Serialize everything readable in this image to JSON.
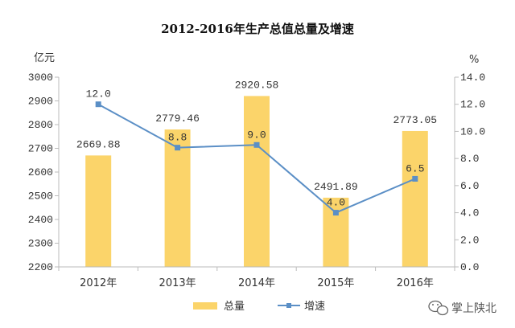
{
  "chart_data": {
    "type": "bar",
    "title": "2012-2016年生产总值总量及增速",
    "categories": [
      "2012年",
      "2013年",
      "2014年",
      "2015年",
      "2016年"
    ],
    "ylabel_left": "亿元",
    "ylabel_right": "%",
    "ylim_left": [
      2200,
      3000
    ],
    "ylim_right": [
      0.0,
      14.0
    ],
    "yticks_left": [
      "2200",
      "2300",
      "2400",
      "2500",
      "2600",
      "2700",
      "2800",
      "2900",
      "3000"
    ],
    "yticks_right": [
      "0.0",
      "2.0",
      "4.0",
      "6.0",
      "8.0",
      "10.0",
      "12.0",
      "14.0"
    ],
    "series": [
      {
        "name": "总量",
        "type": "bar",
        "axis": "left",
        "color": "#fbd46a",
        "values": [
          2669.88,
          2779.46,
          2920.58,
          2491.89,
          2773.05
        ],
        "labels": [
          "2669.88",
          "2779.46",
          "2920.58",
          "2491.89",
          "2773.05"
        ]
      },
      {
        "name": "增速",
        "type": "line",
        "axis": "right",
        "color": "#5b8fc6",
        "values": [
          12.0,
          8.8,
          9.0,
          4.0,
          6.5
        ],
        "labels": [
          "12.0",
          "8.8",
          "9.0",
          "4.0",
          "6.5"
        ]
      }
    ],
    "legend": [
      "总量",
      "增速"
    ],
    "legend_position": "bottom-center",
    "grid": false
  },
  "watermark": {
    "text": "掌上陕北",
    "icon": "wechat-icon"
  }
}
